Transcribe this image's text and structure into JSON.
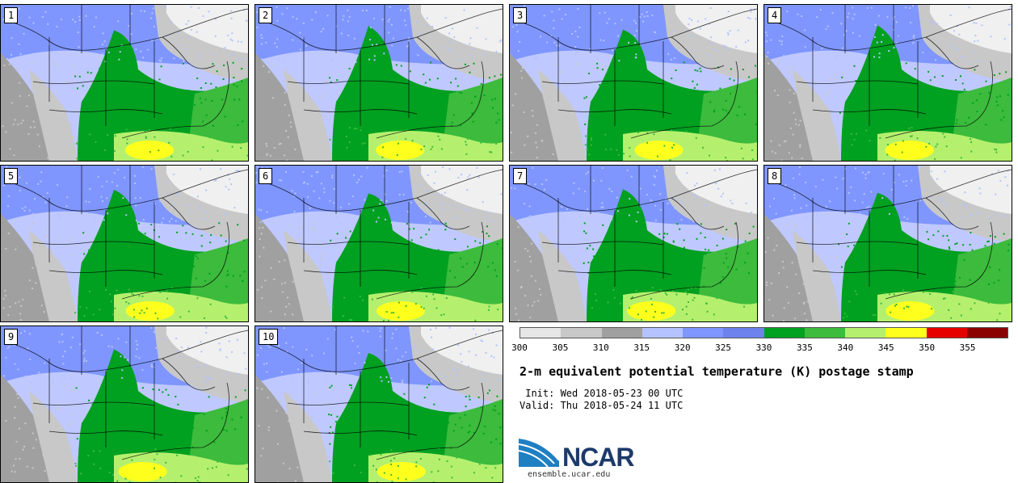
{
  "panels": [
    {
      "label": "1"
    },
    {
      "label": "2"
    },
    {
      "label": "3"
    },
    {
      "label": "4"
    },
    {
      "label": "5"
    },
    {
      "label": "6"
    },
    {
      "label": "7"
    },
    {
      "label": "8"
    },
    {
      "label": "9"
    },
    {
      "label": "10"
    }
  ],
  "colorbar": {
    "colors": [
      "#e6e6e6",
      "#c8c8c8",
      "#a0a0a0",
      "#b4c3ff",
      "#7f96ff",
      "#6e82ee",
      "#00a020",
      "#3cbb3c",
      "#b4f06e",
      "#ffff1e",
      "#e60000",
      "#8b0000"
    ],
    "tick_labels": [
      "300",
      "305",
      "310",
      "315",
      "320",
      "325",
      "330",
      "335",
      "340",
      "345",
      "350",
      "355"
    ]
  },
  "title": "2-m equivalent potential temperature (K) postage stamp",
  "init_line": " Init: Wed 2018-05-23 00 UTC",
  "valid_line": "Valid: Thu 2018-05-24 11 UTC",
  "logo": {
    "text": "NCAR",
    "site": "ensemble.ucar.edu"
  }
}
